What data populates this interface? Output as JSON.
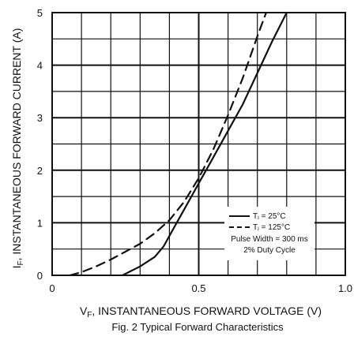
{
  "chart_data": {
    "type": "line",
    "caption": "Fig. 2 Typical Forward Characteristics",
    "xlabel": {
      "prefix": "V",
      "sub": "F",
      "text": ", INSTANTANEOUS FORWARD VOLTAGE (V)"
    },
    "ylabel": {
      "prefix": "I",
      "sub": "F",
      "text": ", INSTANTANEOUS FORWARD CURRENT (A)"
    },
    "xlim": [
      0,
      1.0
    ],
    "ylim": [
      0,
      5
    ],
    "x_ticks": [
      {
        "value": 0,
        "label": "0"
      },
      {
        "value": 0.5,
        "label": "0.5"
      },
      {
        "value": 1.0,
        "label": "1.0"
      }
    ],
    "y_ticks": [
      {
        "value": 0,
        "label": "0"
      },
      {
        "value": 1,
        "label": "1"
      },
      {
        "value": 2,
        "label": "2"
      },
      {
        "value": 3,
        "label": "3"
      },
      {
        "value": 4,
        "label": "4"
      },
      {
        "value": 5,
        "label": "5"
      }
    ],
    "grid": {
      "x_step": 0.1,
      "y_step": 0.5
    },
    "series": [
      {
        "name": "Tⱼ = 25°C",
        "style": "solid",
        "x": [
          0.24,
          0.3,
          0.35,
          0.38,
          0.42,
          0.46,
          0.5,
          0.55,
          0.6,
          0.65,
          0.7,
          0.75,
          0.8
        ],
        "y": [
          0.0,
          0.17,
          0.35,
          0.55,
          0.95,
          1.35,
          1.75,
          2.25,
          2.75,
          3.25,
          3.85,
          4.45,
          5.0
        ]
      },
      {
        "name": "Tⱼ = 125°C",
        "style": "dashed",
        "x": [
          0.06,
          0.1,
          0.15,
          0.2,
          0.25,
          0.3,
          0.35,
          0.4,
          0.45,
          0.5,
          0.55,
          0.6,
          0.65,
          0.7,
          0.73
        ],
        "y": [
          0.0,
          0.06,
          0.17,
          0.3,
          0.45,
          0.6,
          0.8,
          1.05,
          1.4,
          1.85,
          2.4,
          3.05,
          3.75,
          4.55,
          5.0
        ]
      }
    ],
    "legend": {
      "position": "bottom-right",
      "notes": [
        "Pulse Width = 300 ms",
        "2% Duty Cycle"
      ]
    }
  }
}
